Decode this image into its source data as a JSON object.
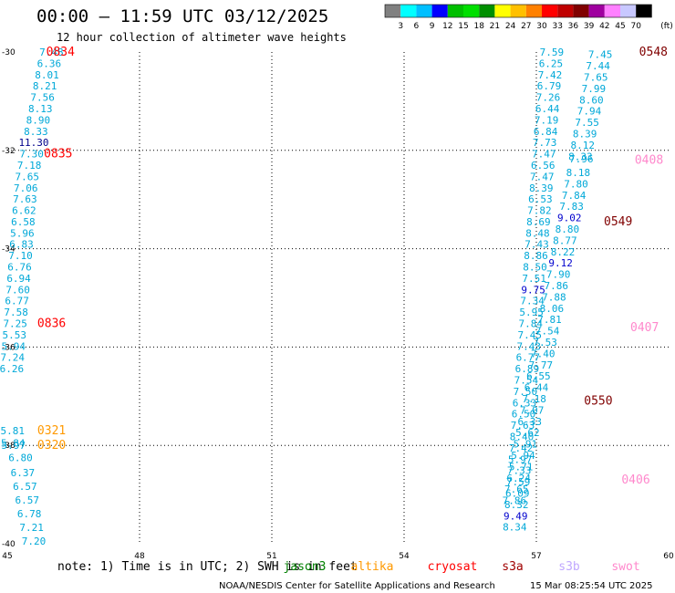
{
  "header": {
    "title": "00:00 – 11:59 UTC 03/12/2025",
    "subtitle": "12 hour collection of altimeter wave heights"
  },
  "colorbar": {
    "unit": "(ft)",
    "colors": [
      "#808080",
      "#00ffff",
      "#00bfff",
      "#0000ff",
      "#00bf00",
      "#00df00",
      "#008f00",
      "#ffff00",
      "#ffc000",
      "#ff8000",
      "#ff0000",
      "#bf0000",
      "#800000",
      "#9f009f",
      "#ff80ff",
      "#c8c8ff",
      "#000000"
    ],
    "ticks": [
      "3",
      "6",
      "9",
      "12",
      "15",
      "18",
      "21",
      "24",
      "27",
      "30",
      "33",
      "36",
      "39",
      "42",
      "45",
      "70"
    ]
  },
  "footer": {
    "note": "note: 1) Time is in UTC; 2) SWH is in feet",
    "legend": [
      {
        "label": "jason3",
        "color": "#008000"
      },
      {
        "label": "altika",
        "color": "#ff9900"
      },
      {
        "label": "cryosat",
        "color": "#ff0000"
      },
      {
        "label": "s3a",
        "color": "#a00000"
      },
      {
        "label": "s3b",
        "color": "#c0a8ff"
      },
      {
        "label": "swot",
        "color": "#ff88cc"
      }
    ],
    "credit": "NOAA/NESDIS Center for Satellite Applications and Research",
    "timestamp": "15 Mar 08:25:54 UTC 2025"
  },
  "chart_data": {
    "type": "scatter",
    "xlim": [
      45,
      60
    ],
    "ylim": [
      -40,
      -30
    ],
    "xticks": [
      "45",
      "48",
      "51",
      "54",
      "57",
      "60"
    ],
    "yticks": [
      "-30",
      "-32",
      "-34",
      "-36",
      "-38",
      "-40"
    ],
    "grid": true,
    "x_coordinate_note": "longitude (°E)",
    "y_coordinate_note": "latitude",
    "series": [
      {
        "values": [
          {
            "x": 46.0,
            "y": -30.0,
            "v": "7.48"
          },
          {
            "x": 45.95,
            "y": -30.23,
            "v": "6.36"
          },
          {
            "x": 45.9,
            "y": -30.46,
            "v": "8.01"
          },
          {
            "x": 45.85,
            "y": -30.69,
            "v": "8.21"
          },
          {
            "x": 45.8,
            "y": -30.92,
            "v": "7.56"
          },
          {
            "x": 45.75,
            "y": -31.15,
            "v": "8.13"
          },
          {
            "x": 45.7,
            "y": -31.38,
            "v": "8.90"
          },
          {
            "x": 45.65,
            "y": -31.61,
            "v": "8.33"
          },
          {
            "x": 45.6,
            "y": -31.84,
            "v": "11.30"
          },
          {
            "x": 45.55,
            "y": -32.07,
            "v": "7.30"
          },
          {
            "x": 45.5,
            "y": -32.3,
            "v": "7.18"
          },
          {
            "x": 45.45,
            "y": -32.53,
            "v": "7.65"
          },
          {
            "x": 45.42,
            "y": -32.76,
            "v": "7.06"
          },
          {
            "x": 45.4,
            "y": -32.99,
            "v": "7.63"
          },
          {
            "x": 45.38,
            "y": -33.22,
            "v": "6.62"
          },
          {
            "x": 45.36,
            "y": -33.45,
            "v": "6.58"
          },
          {
            "x": 45.34,
            "y": -33.68,
            "v": "5.96"
          },
          {
            "x": 45.32,
            "y": -33.91,
            "v": "6.83"
          },
          {
            "x": 45.3,
            "y": -34.14,
            "v": "7.10"
          },
          {
            "x": 45.28,
            "y": -34.37,
            "v": "6.76"
          },
          {
            "x": 45.26,
            "y": -34.6,
            "v": "6.94"
          },
          {
            "x": 45.24,
            "y": -34.83,
            "v": "7.60"
          },
          {
            "x": 45.22,
            "y": -35.06,
            "v": "6.77"
          },
          {
            "x": 45.2,
            "y": -35.29,
            "v": "7.58"
          },
          {
            "x": 45.18,
            "y": -35.52,
            "v": "7.25"
          },
          {
            "x": 45.16,
            "y": -35.75,
            "v": "5.53"
          },
          {
            "x": 45.14,
            "y": -35.98,
            "v": "5.94"
          },
          {
            "x": 45.12,
            "y": -36.21,
            "v": "7.24"
          },
          {
            "x": 45.1,
            "y": -36.44,
            "v": "6.26"
          },
          {
            "x": 45.12,
            "y": -37.7,
            "v": "5.81"
          },
          {
            "x": 45.13,
            "y": -37.95,
            "v": "5.84"
          },
          {
            "x": 45.14,
            "y": -38.0,
            "v": "5.97"
          },
          {
            "x": 45.3,
            "y": -38.25,
            "v": "6.80"
          },
          {
            "x": 45.35,
            "y": -38.55,
            "v": "6.37"
          },
          {
            "x": 45.4,
            "y": -38.83,
            "v": "6.57"
          },
          {
            "x": 45.45,
            "y": -39.11,
            "v": "6.57"
          },
          {
            "x": 45.5,
            "y": -39.39,
            "v": "6.78"
          },
          {
            "x": 45.55,
            "y": -39.67,
            "v": "7.21"
          },
          {
            "x": 45.6,
            "y": -39.94,
            "v": "7.20"
          },
          {
            "x": 57.35,
            "y": -30.0,
            "v": "7.59"
          },
          {
            "x": 57.33,
            "y": -30.23,
            "v": "6.25"
          },
          {
            "x": 57.31,
            "y": -30.46,
            "v": "7.42"
          },
          {
            "x": 57.29,
            "y": -30.69,
            "v": "6.79"
          },
          {
            "x": 57.27,
            "y": -30.92,
            "v": "7.26"
          },
          {
            "x": 57.25,
            "y": -31.15,
            "v": "6.44"
          },
          {
            "x": 57.23,
            "y": -31.38,
            "v": "7.19"
          },
          {
            "x": 57.21,
            "y": -31.61,
            "v": "6.84"
          },
          {
            "x": 57.19,
            "y": -31.84,
            "v": "7.73"
          },
          {
            "x": 57.17,
            "y": -32.07,
            "v": "7.47"
          },
          {
            "x": 57.15,
            "y": -32.3,
            "v": "6.56"
          },
          {
            "x": 57.13,
            "y": -32.53,
            "v": "7.47"
          },
          {
            "x": 57.11,
            "y": -32.76,
            "v": "8.39"
          },
          {
            "x": 57.09,
            "y": -32.99,
            "v": "6.53"
          },
          {
            "x": 57.07,
            "y": -33.22,
            "v": "7.82"
          },
          {
            "x": 57.05,
            "y": -33.45,
            "v": "8.69"
          },
          {
            "x": 57.03,
            "y": -33.68,
            "v": "8.48"
          },
          {
            "x": 57.01,
            "y": -33.91,
            "v": "7.43"
          },
          {
            "x": 56.99,
            "y": -34.14,
            "v": "8.86"
          },
          {
            "x": 56.97,
            "y": -34.37,
            "v": "8.50"
          },
          {
            "x": 56.95,
            "y": -34.6,
            "v": "7.51"
          },
          {
            "x": 56.93,
            "y": -34.83,
            "v": "9.75"
          },
          {
            "x": 56.91,
            "y": -35.06,
            "v": "7.34"
          },
          {
            "x": 56.89,
            "y": -35.29,
            "v": "5.95"
          },
          {
            "x": 56.87,
            "y": -35.52,
            "v": "7.84"
          },
          {
            "x": 56.85,
            "y": -35.75,
            "v": "7.45"
          },
          {
            "x": 56.83,
            "y": -35.98,
            "v": "7.43"
          },
          {
            "x": 56.81,
            "y": -36.21,
            "v": "6.77"
          },
          {
            "x": 56.79,
            "y": -36.44,
            "v": "6.89"
          },
          {
            "x": 56.77,
            "y": -36.67,
            "v": "7.54"
          },
          {
            "x": 56.75,
            "y": -36.9,
            "v": "7.50"
          },
          {
            "x": 56.73,
            "y": -37.13,
            "v": "6.33"
          },
          {
            "x": 56.71,
            "y": -37.36,
            "v": "6.50"
          },
          {
            "x": 56.69,
            "y": -37.59,
            "v": "7.63"
          },
          {
            "x": 56.67,
            "y": -37.82,
            "v": "8.40"
          },
          {
            "x": 56.65,
            "y": -38.05,
            "v": "7.42"
          },
          {
            "x": 56.63,
            "y": -38.28,
            "v": "5.97"
          },
          {
            "x": 56.61,
            "y": -38.51,
            "v": "7.33"
          },
          {
            "x": 56.59,
            "y": -38.74,
            "v": "7.59"
          },
          {
            "x": 56.57,
            "y": -38.97,
            "v": "6.09"
          },
          {
            "x": 56.55,
            "y": -39.2,
            "v": "8.32"
          },
          {
            "x": 56.53,
            "y": -39.43,
            "v": "9.49"
          },
          {
            "x": 56.51,
            "y": -39.66,
            "v": "8.34"
          },
          {
            "x": 58.45,
            "y": -30.05,
            "v": "7.45"
          },
          {
            "x": 58.4,
            "y": -30.28,
            "v": "7.44"
          },
          {
            "x": 58.35,
            "y": -30.51,
            "v": "7.65"
          },
          {
            "x": 58.3,
            "y": -30.74,
            "v": "7.99"
          },
          {
            "x": 58.25,
            "y": -30.97,
            "v": "8.60"
          },
          {
            "x": 58.2,
            "y": -31.2,
            "v": "7.94"
          },
          {
            "x": 58.15,
            "y": -31.43,
            "v": "7.55"
          },
          {
            "x": 58.1,
            "y": -31.66,
            "v": "8.39"
          },
          {
            "x": 58.05,
            "y": -31.89,
            "v": "8.12"
          },
          {
            "x": 58.0,
            "y": -32.12,
            "v": "8.33"
          },
          {
            "x": 58.02,
            "y": -32.17,
            "v": "7.96"
          },
          {
            "x": 57.95,
            "y": -32.45,
            "v": "8.18"
          },
          {
            "x": 57.9,
            "y": -32.68,
            "v": "7.80"
          },
          {
            "x": 57.85,
            "y": -32.91,
            "v": "7.84"
          },
          {
            "x": 57.8,
            "y": -33.14,
            "v": "7.83"
          },
          {
            "x": 57.75,
            "y": -33.37,
            "v": "9.02"
          },
          {
            "x": 57.7,
            "y": -33.6,
            "v": "8.80"
          },
          {
            "x": 57.65,
            "y": -33.83,
            "v": "8.77"
          },
          {
            "x": 57.6,
            "y": -34.06,
            "v": "8.22"
          },
          {
            "x": 57.55,
            "y": -34.29,
            "v": "9.12"
          },
          {
            "x": 57.5,
            "y": -34.52,
            "v": "7.90"
          },
          {
            "x": 57.45,
            "y": -34.75,
            "v": "7.86"
          },
          {
            "x": 57.4,
            "y": -34.98,
            "v": "7.88"
          },
          {
            "x": 57.35,
            "y": -35.21,
            "v": "8.06"
          },
          {
            "x": 57.3,
            "y": -35.44,
            "v": "7.81"
          },
          {
            "x": 57.25,
            "y": -35.67,
            "v": "7.54"
          },
          {
            "x": 57.2,
            "y": -35.9,
            "v": "7.53"
          },
          {
            "x": 57.15,
            "y": -36.13,
            "v": "7.40"
          },
          {
            "x": 57.1,
            "y": -36.36,
            "v": "7.77"
          },
          {
            "x": 57.05,
            "y": -36.59,
            "v": "6.55"
          },
          {
            "x": 57.0,
            "y": -36.82,
            "v": "6.44"
          },
          {
            "x": 56.95,
            "y": -37.05,
            "v": "7.18"
          },
          {
            "x": 56.9,
            "y": -37.28,
            "v": "7.07"
          },
          {
            "x": 56.85,
            "y": -37.51,
            "v": "6.33"
          },
          {
            "x": 56.8,
            "y": -37.74,
            "v": "5.62"
          },
          {
            "x": 56.75,
            "y": -37.97,
            "v": "5.91"
          },
          {
            "x": 56.7,
            "y": -38.2,
            "v": "5.94"
          },
          {
            "x": 56.65,
            "y": -38.43,
            "v": "5.71"
          },
          {
            "x": 56.6,
            "y": -38.66,
            "v": "6.24"
          },
          {
            "x": 56.55,
            "y": -38.89,
            "v": "7.65"
          },
          {
            "x": 56.5,
            "y": -39.12,
            "v": "7.86"
          }
        ]
      }
    ],
    "time_labels": [
      {
        "x": 45.75,
        "y": -30.0,
        "v": "0834",
        "color": "#ff0000"
      },
      {
        "x": 45.7,
        "y": -32.07,
        "v": "0835",
        "color": "#ff0000"
      },
      {
        "x": 45.55,
        "y": -35.52,
        "v": "0836",
        "color": "#ff0000"
      },
      {
        "x": 45.55,
        "y": -37.7,
        "v": "0321",
        "color": "#ff9900"
      },
      {
        "x": 45.55,
        "y": -38.0,
        "v": "0320",
        "color": "#ff9900"
      },
      {
        "x": 59.2,
        "y": -30.0,
        "v": "0548",
        "color": "#800000"
      },
      {
        "x": 58.4,
        "y": -33.45,
        "v": "0549",
        "color": "#800000"
      },
      {
        "x": 57.95,
        "y": -37.1,
        "v": "0550",
        "color": "#800000"
      },
      {
        "x": 59.1,
        "y": -32.2,
        "v": "0408",
        "color": "#ff88cc"
      },
      {
        "x": 59.0,
        "y": -35.6,
        "v": "0407",
        "color": "#ff88cc"
      },
      {
        "x": 58.8,
        "y": -38.7,
        "v": "0406",
        "color": "#ff88cc"
      }
    ]
  }
}
